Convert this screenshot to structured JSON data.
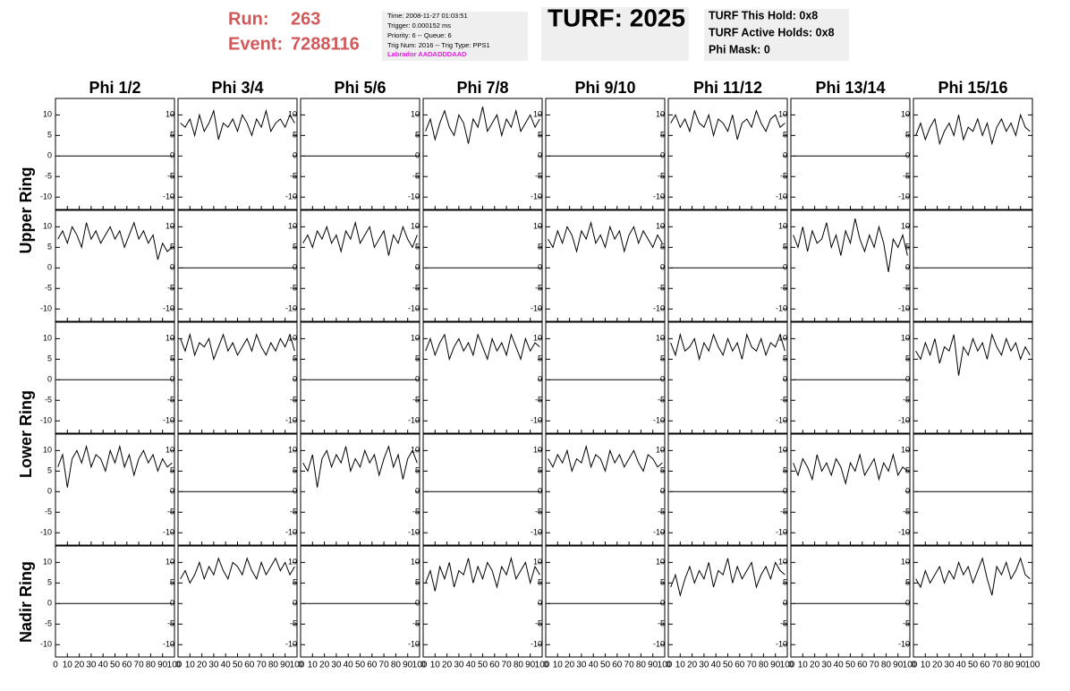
{
  "header": {
    "run_label": "Run:",
    "run": "263",
    "event_label": "Event:",
    "event": "7288116",
    "info": [
      "Time: 2008-11-27 01:03:51",
      "Trigger: 0.000152 ms",
      "Priority: 6 -- Queue: 6",
      "Trig Num: 2016 -- Trig Type: PPS1"
    ],
    "labrador": "Labrador AADADDDAAD",
    "turf": "TURF: 2025",
    "turf_info": [
      "TURF This Hold: 0x8",
      "TURF Active Holds: 0x8",
      "Phi Mask: 0"
    ]
  },
  "chart_data": {
    "type": "waveform-grid",
    "color": "#000000",
    "columns": [
      "Phi 1/2",
      "Phi 3/4",
      "Phi 5/6",
      "Phi 7/8",
      "Phi 9/10",
      "Phi 11/12",
      "Phi 13/14",
      "Phi 15/16"
    ],
    "ring_labels": [
      "Upper Ring",
      "Lower Ring",
      "Nadir Ring"
    ],
    "xlim": [
      0,
      100
    ],
    "xticks": [
      0,
      10,
      20,
      30,
      40,
      50,
      60,
      70,
      80,
      90,
      100
    ],
    "ylim": [
      -13,
      14
    ],
    "yticks": [
      -10,
      -5,
      0,
      5,
      10
    ],
    "x": [
      2,
      6,
      10,
      14,
      18,
      22,
      26,
      30,
      34,
      38,
      42,
      46,
      50,
      54,
      58,
      62,
      66,
      70,
      74,
      78,
      82,
      86,
      90,
      94,
      98
    ],
    "panels": [
      [
        [
          0,
          0,
          0,
          0,
          0,
          0,
          0,
          0,
          0,
          0,
          0,
          0,
          0,
          0,
          0,
          0,
          0,
          0,
          0,
          0,
          0,
          0,
          0,
          0,
          0
        ],
        [
          8,
          7,
          9,
          5,
          10,
          6,
          8,
          11,
          4,
          8,
          7,
          9,
          6,
          10,
          8,
          5,
          9,
          7,
          11,
          6,
          8,
          9,
          7,
          10,
          8
        ],
        [
          0,
          0,
          0,
          0,
          0,
          0,
          0,
          0,
          0,
          0,
          0,
          0,
          0,
          0,
          0,
          0,
          0,
          0,
          0,
          0,
          0,
          0,
          0,
          0,
          0
        ],
        [
          6,
          9,
          4,
          8,
          11,
          7,
          5,
          10,
          8,
          3,
          9,
          7,
          12,
          6,
          8,
          10,
          5,
          9,
          7,
          11,
          6,
          8,
          10,
          7,
          9
        ],
        [
          0,
          0,
          0,
          0,
          0,
          0,
          0,
          0,
          0,
          0,
          0,
          0,
          0,
          0,
          0,
          0,
          0,
          0,
          0,
          0,
          0,
          0,
          0,
          0,
          0
        ],
        [
          8,
          10,
          7,
          9,
          6,
          11,
          8,
          7,
          10,
          5,
          9,
          8,
          6,
          10,
          4,
          8,
          9,
          7,
          11,
          8,
          6,
          9,
          10,
          7,
          8
        ],
        [
          0,
          0,
          0,
          0,
          0,
          0,
          0,
          0,
          0,
          0,
          0,
          0,
          0,
          0,
          0,
          0,
          0,
          0,
          0,
          0,
          0,
          0,
          0,
          0,
          0
        ],
        [
          5,
          8,
          4,
          7,
          9,
          3,
          6,
          8,
          5,
          10,
          4,
          7,
          6,
          9,
          5,
          8,
          3,
          7,
          9,
          6,
          8,
          5,
          10,
          7,
          6
        ]
      ],
      [
        [
          7,
          9,
          6,
          10,
          8,
          5,
          11,
          7,
          9,
          6,
          8,
          10,
          7,
          9,
          5,
          8,
          11,
          7,
          9,
          6,
          8,
          2,
          6,
          4,
          5
        ],
        [
          0,
          0,
          0,
          0,
          0,
          0,
          0,
          0,
          0,
          0,
          0,
          0,
          0,
          0,
          0,
          0,
          0,
          0,
          0,
          0,
          0,
          0,
          0,
          0,
          0
        ],
        [
          6,
          8,
          5,
          9,
          7,
          10,
          6,
          8,
          4,
          9,
          7,
          11,
          6,
          8,
          10,
          5,
          7,
          9,
          3,
          8,
          6,
          10,
          7,
          5,
          8
        ],
        [
          0,
          0,
          0,
          0,
          0,
          0,
          0,
          0,
          0,
          0,
          0,
          0,
          0,
          0,
          0,
          0,
          0,
          0,
          0,
          0,
          0,
          0,
          0,
          0,
          0
        ],
        [
          7,
          5,
          9,
          6,
          10,
          8,
          4,
          9,
          7,
          11,
          6,
          8,
          5,
          10,
          7,
          9,
          4,
          8,
          10,
          6,
          9,
          7,
          5,
          8,
          6
        ],
        [
          0,
          0,
          0,
          0,
          0,
          0,
          0,
          0,
          0,
          0,
          0,
          0,
          0,
          0,
          0,
          0,
          0,
          0,
          0,
          0,
          0,
          0,
          0,
          0,
          0
        ],
        [
          8,
          5,
          10,
          4,
          9,
          6,
          7,
          11,
          5,
          8,
          3,
          9,
          6,
          12,
          7,
          4,
          8,
          5,
          10,
          6,
          -1,
          7,
          5,
          8,
          3
        ],
        [
          0,
          0,
          0,
          0,
          0,
          0,
          0,
          0,
          0,
          0,
          0,
          0,
          0,
          0,
          0,
          0,
          0,
          0,
          0,
          0,
          0,
          0,
          0,
          0,
          0
        ]
      ],
      [
        [
          0,
          0,
          0,
          0,
          0,
          0,
          0,
          0,
          0,
          0,
          0,
          0,
          0,
          0,
          0,
          0,
          0,
          0,
          0,
          0,
          0,
          0,
          0,
          0,
          0
        ],
        [
          10,
          7,
          11,
          6,
          9,
          8,
          10,
          5,
          8,
          11,
          7,
          9,
          6,
          8,
          10,
          7,
          11,
          8,
          6,
          9,
          7,
          10,
          8,
          11,
          7
        ],
        [
          0,
          0,
          0,
          0,
          0,
          0,
          0,
          0,
          0,
          0,
          0,
          0,
          0,
          0,
          0,
          0,
          0,
          0,
          0,
          0,
          0,
          0,
          0,
          0,
          0
        ],
        [
          7,
          10,
          6,
          9,
          11,
          5,
          8,
          10,
          7,
          9,
          6,
          11,
          8,
          5,
          10,
          7,
          9,
          6,
          11,
          8,
          5,
          10,
          7,
          9,
          8
        ],
        [
          0,
          0,
          0,
          0,
          0,
          0,
          0,
          0,
          0,
          0,
          0,
          0,
          0,
          0,
          0,
          0,
          0,
          0,
          0,
          0,
          0,
          0,
          0,
          0,
          0
        ],
        [
          9,
          6,
          11,
          7,
          8,
          10,
          5,
          9,
          7,
          11,
          8,
          6,
          10,
          7,
          9,
          5,
          11,
          8,
          7,
          10,
          6,
          9,
          8,
          11,
          7
        ],
        [
          0,
          0,
          0,
          0,
          0,
          0,
          0,
          0,
          0,
          0,
          0,
          0,
          0,
          0,
          0,
          0,
          0,
          0,
          0,
          0,
          0,
          0,
          0,
          0,
          0
        ],
        [
          7,
          5,
          9,
          6,
          10,
          4,
          8,
          7,
          11,
          1,
          8,
          6,
          10,
          7,
          9,
          5,
          11,
          8,
          6,
          10,
          7,
          9,
          5,
          8,
          6
        ]
      ],
      [
        [
          6,
          9,
          1,
          8,
          10,
          7,
          11,
          6,
          9,
          8,
          5,
          10,
          7,
          11,
          6,
          9,
          4,
          8,
          10,
          7,
          9,
          5,
          8,
          6,
          7
        ],
        [
          0,
          0,
          0,
          0,
          0,
          0,
          0,
          0,
          0,
          0,
          0,
          0,
          0,
          0,
          0,
          0,
          0,
          0,
          0,
          0,
          0,
          0,
          0,
          0,
          0
        ],
        [
          7,
          5,
          9,
          1,
          8,
          10,
          6,
          9,
          7,
          11,
          5,
          8,
          6,
          10,
          7,
          9,
          4,
          8,
          11,
          6,
          9,
          3,
          8,
          10,
          7
        ],
        [
          0,
          0,
          0,
          0,
          0,
          0,
          0,
          0,
          0,
          0,
          0,
          0,
          0,
          0,
          0,
          0,
          0,
          0,
          0,
          0,
          0,
          0,
          0,
          0,
          0
        ],
        [
          8,
          6,
          9,
          7,
          10,
          5,
          8,
          7,
          11,
          6,
          9,
          8,
          5,
          10,
          7,
          9,
          6,
          8,
          10,
          7,
          5,
          9,
          8,
          6,
          7
        ],
        [
          0,
          0,
          0,
          0,
          0,
          0,
          0,
          0,
          0,
          0,
          0,
          0,
          0,
          0,
          0,
          0,
          0,
          0,
          0,
          0,
          0,
          0,
          0,
          0,
          0
        ],
        [
          7,
          4,
          8,
          6,
          3,
          9,
          5,
          7,
          4,
          8,
          6,
          2,
          7,
          5,
          9,
          4,
          6,
          8,
          3,
          7,
          5,
          9,
          4,
          6,
          5
        ],
        [
          0,
          0,
          0,
          0,
          0,
          0,
          0,
          0,
          0,
          0,
          0,
          0,
          0,
          0,
          0,
          0,
          0,
          0,
          0,
          0,
          0,
          0,
          0,
          0,
          0
        ]
      ],
      [
        [
          0,
          0,
          0,
          0,
          0,
          0,
          0,
          0,
          0,
          0,
          0,
          0,
          0,
          0,
          0,
          0,
          0,
          0,
          0,
          0,
          0,
          0,
          0,
          0,
          0
        ],
        [
          6,
          8,
          5,
          7,
          10,
          6,
          9,
          7,
          11,
          8,
          6,
          10,
          9,
          7,
          11,
          8,
          6,
          10,
          7,
          9,
          11,
          8,
          10,
          7,
          9
        ],
        [
          0,
          0,
          0,
          0,
          0,
          0,
          0,
          0,
          0,
          0,
          0,
          0,
          0,
          0,
          0,
          0,
          0,
          0,
          0,
          0,
          0,
          0,
          0,
          0,
          0
        ],
        [
          5,
          8,
          3,
          9,
          6,
          10,
          4,
          8,
          7,
          11,
          5,
          9,
          6,
          10,
          8,
          4,
          9,
          7,
          11,
          6,
          8,
          10,
          5,
          9,
          7
        ],
        [
          0,
          0,
          0,
          0,
          0,
          0,
          0,
          0,
          0,
          0,
          0,
          0,
          0,
          0,
          0,
          0,
          0,
          0,
          0,
          0,
          0,
          0,
          0,
          0,
          0
        ],
        [
          4,
          7,
          2,
          6,
          9,
          5,
          8,
          6,
          10,
          4,
          8,
          7,
          11,
          5,
          9,
          6,
          8,
          10,
          4,
          7,
          9,
          6,
          10,
          8,
          7
        ],
        [
          0,
          0,
          0,
          0,
          0,
          0,
          0,
          0,
          0,
          0,
          0,
          0,
          0,
          0,
          0,
          0,
          0,
          0,
          0,
          0,
          0,
          0,
          0,
          0,
          0
        ],
        [
          6,
          4,
          8,
          5,
          7,
          9,
          5,
          8,
          6,
          10,
          7,
          9,
          5,
          8,
          11,
          6,
          2,
          9,
          7,
          10,
          6,
          8,
          11,
          7,
          6
        ]
      ]
    ]
  }
}
